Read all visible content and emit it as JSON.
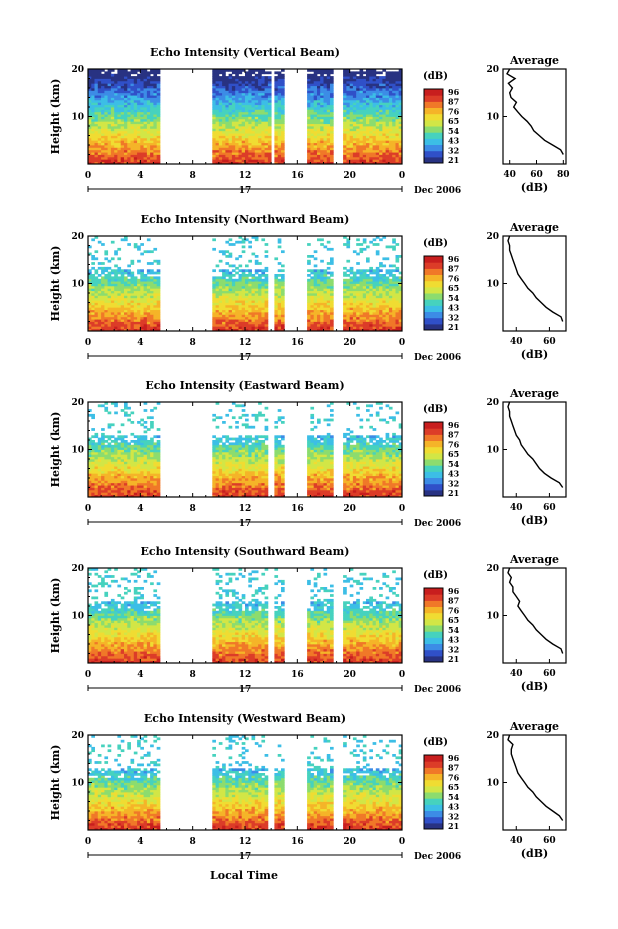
{
  "x_axis": {
    "label": "Local Time",
    "ticks": [
      "0",
      "4",
      "8",
      "12",
      "16",
      "20",
      "0"
    ],
    "day_label": "17",
    "date_label": "Dec 2006"
  },
  "colorbar": {
    "unit": "(dB)",
    "ticks": [
      "96",
      "87",
      "76",
      "65",
      "54",
      "43",
      "32",
      "21"
    ]
  },
  "average_title": "Average",
  "average_unit": "(dB)",
  "panel_ylabel": "Height (km)",
  "colors": {
    "scale": [
      "#283282",
      "#3050c8",
      "#3c8ce6",
      "#3cbee6",
      "#46d2be",
      "#8cdc6e",
      "#d2e646",
      "#f0dc32",
      "#f5b428",
      "#f07828",
      "#dc3c28",
      "#c81e1e"
    ]
  },
  "chart_data": [
    {
      "type": "heatmap",
      "title": "Echo Intensity (Vertical Beam)",
      "xlabel": "",
      "ylabel": "Height (km)",
      "xlim": [
        0,
        24
      ],
      "ylim": [
        0,
        20
      ],
      "y_ticks": [
        10,
        20
      ],
      "value_unit": "dB",
      "value_range": [
        21,
        96
      ],
      "data_gaps_hours": [
        [
          5.5,
          9.5
        ],
        [
          14.0,
          14.3
        ],
        [
          15.1,
          16.8
        ],
        [
          18.7,
          19.6
        ]
      ],
      "average_profile": {
        "title": "Average",
        "xlabel": "(dB)",
        "x_ticks": [
          40,
          60,
          80
        ],
        "xlim": [
          35,
          82
        ],
        "ylim": [
          0,
          20
        ],
        "height_km": [
          2,
          3,
          4,
          5,
          6,
          7,
          8,
          9,
          10,
          11,
          12,
          13,
          14,
          15,
          16,
          17,
          18,
          19,
          20
        ],
        "db": [
          80,
          78,
          72,
          66,
          62,
          58,
          56,
          53,
          49,
          46,
          43,
          45,
          41,
          40,
          42,
          39,
          44,
          38,
          40
        ]
      }
    },
    {
      "type": "heatmap",
      "title": "Echo Intensity (Northward Beam)",
      "xlabel": "",
      "ylabel": "Height (km)",
      "xlim": [
        0,
        24
      ],
      "ylim": [
        0,
        20
      ],
      "y_ticks": [
        10,
        20
      ],
      "value_unit": "dB",
      "value_range": [
        21,
        96
      ],
      "data_gaps_hours": [
        [
          5.5,
          9.5
        ],
        [
          13.8,
          14.3
        ],
        [
          15.1,
          16.8
        ],
        [
          18.7,
          19.6
        ]
      ],
      "average_profile": {
        "title": "Average",
        "xlabel": "(dB)",
        "x_ticks": [
          40,
          60
        ],
        "xlim": [
          32,
          70
        ],
        "ylim": [
          0,
          20
        ],
        "height_km": [
          2,
          3,
          4,
          5,
          6,
          7,
          8,
          9,
          10,
          11,
          12,
          13,
          14,
          15,
          16,
          17,
          18,
          19,
          20
        ],
        "db": [
          68,
          67,
          62,
          58,
          55,
          52,
          50,
          47,
          45,
          43,
          41,
          40,
          39,
          38,
          37,
          36,
          36,
          35,
          36
        ]
      }
    },
    {
      "type": "heatmap",
      "title": "Echo Intensity (Eastward Beam)",
      "xlabel": "",
      "ylabel": "Height (km)",
      "xlim": [
        0,
        24
      ],
      "ylim": [
        0,
        20
      ],
      "y_ticks": [
        10,
        20
      ],
      "value_unit": "dB",
      "value_range": [
        21,
        96
      ],
      "data_gaps_hours": [
        [
          5.5,
          9.5
        ],
        [
          13.8,
          14.3
        ],
        [
          15.1,
          16.8
        ],
        [
          18.7,
          19.6
        ]
      ],
      "average_profile": {
        "title": "Average",
        "xlabel": "(dB)",
        "x_ticks": [
          40,
          60
        ],
        "xlim": [
          32,
          70
        ],
        "ylim": [
          0,
          20
        ],
        "height_km": [
          2,
          3,
          4,
          5,
          6,
          7,
          8,
          9,
          10,
          11,
          12,
          13,
          14,
          15,
          16,
          17,
          18,
          19,
          20
        ],
        "db": [
          68,
          66,
          61,
          57,
          54,
          52,
          50,
          47,
          45,
          43,
          42,
          40,
          39,
          38,
          37,
          36,
          36,
          35,
          36
        ]
      }
    },
    {
      "type": "heatmap",
      "title": "Echo Intensity (Southward Beam)",
      "xlabel": "",
      "ylabel": "Height (km)",
      "xlim": [
        0,
        24
      ],
      "ylim": [
        0,
        20
      ],
      "y_ticks": [
        10,
        20
      ],
      "value_unit": "dB",
      "value_range": [
        21,
        96
      ],
      "data_gaps_hours": [
        [
          5.5,
          9.5
        ],
        [
          13.8,
          14.3
        ],
        [
          15.1,
          16.8
        ],
        [
          18.7,
          19.6
        ]
      ],
      "average_profile": {
        "title": "Average",
        "xlabel": "(dB)",
        "x_ticks": [
          40,
          60
        ],
        "xlim": [
          32,
          70
        ],
        "ylim": [
          0,
          20
        ],
        "height_km": [
          2,
          3,
          4,
          5,
          6,
          7,
          8,
          9,
          10,
          11,
          12,
          13,
          14,
          15,
          16,
          17,
          18,
          19,
          20
        ],
        "db": [
          68,
          67,
          62,
          58,
          55,
          52,
          50,
          47,
          45,
          43,
          41,
          42,
          40,
          38,
          38,
          36,
          37,
          35,
          36
        ]
      }
    },
    {
      "type": "heatmap",
      "title": "Echo Intensity (Westward Beam)",
      "xlabel": "Local Time",
      "ylabel": "Height (km)",
      "xlim": [
        0,
        24
      ],
      "ylim": [
        0,
        20
      ],
      "y_ticks": [
        10,
        20
      ],
      "value_unit": "dB",
      "value_range": [
        21,
        96
      ],
      "data_gaps_hours": [
        [
          5.5,
          9.5
        ],
        [
          13.8,
          14.3
        ],
        [
          15.1,
          16.8
        ],
        [
          18.7,
          19.6
        ]
      ],
      "average_profile": {
        "title": "Average",
        "xlabel": "(dB)",
        "x_ticks": [
          40,
          60
        ],
        "xlim": [
          32,
          70
        ],
        "ylim": [
          0,
          20
        ],
        "height_km": [
          2,
          3,
          4,
          5,
          6,
          7,
          8,
          9,
          10,
          11,
          12,
          13,
          14,
          15,
          16,
          17,
          18,
          19,
          20
        ],
        "db": [
          68,
          66,
          62,
          58,
          55,
          52,
          50,
          47,
          45,
          43,
          41,
          40,
          39,
          38,
          37,
          37,
          38,
          35,
          36
        ]
      }
    }
  ]
}
